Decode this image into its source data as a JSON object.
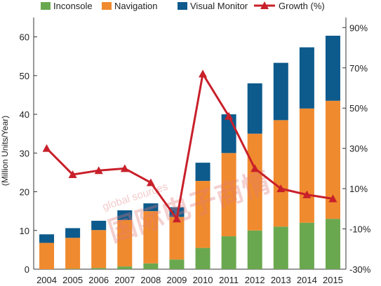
{
  "chart_data": {
    "type": "bar",
    "stacked": true,
    "categories": [
      "2004",
      "2005",
      "2006",
      "2007",
      "2008",
      "2009",
      "2010",
      "2011",
      "2012",
      "2013",
      "2014",
      "2015"
    ],
    "series": [
      {
        "name": "Inconsole",
        "color": "#6aa84f",
        "values": [
          0.0,
          0.1,
          0.3,
          0.7,
          1.5,
          2.5,
          5.5,
          8.5,
          10.0,
          11.0,
          12.0,
          13.0
        ]
      },
      {
        "name": "Navigation",
        "color": "#f08a2e",
        "values": [
          6.8,
          8.0,
          9.8,
          12.0,
          13.5,
          11.0,
          17.3,
          21.5,
          25.0,
          27.5,
          29.5,
          30.5
        ]
      },
      {
        "name": "Visual Monitor",
        "color": "#0d5a8c",
        "values": [
          2.2,
          2.5,
          2.4,
          2.5,
          2.0,
          2.5,
          4.7,
          10.0,
          13.0,
          14.8,
          15.8,
          16.8
        ]
      }
    ],
    "line_series": {
      "name": "Growth (%)",
      "color": "#c8202a",
      "axis": "right",
      "values": [
        30,
        17,
        19,
        20,
        13,
        -5,
        67,
        46,
        20,
        10,
        7,
        5
      ]
    },
    "ylabel": "(Million Units/Year)",
    "ylim": [
      0,
      65
    ],
    "yticks": [
      0,
      10,
      20,
      30,
      40,
      50,
      60
    ],
    "y2lim": [
      -30,
      95
    ],
    "y2ticks": [
      "-30%",
      "-10%",
      "10%",
      "30%",
      "50%",
      "70%",
      "90%"
    ],
    "legend_position": "top",
    "grid": false
  },
  "watermark": {
    "line1": "global sources",
    "line2": "国际电子商情"
  }
}
